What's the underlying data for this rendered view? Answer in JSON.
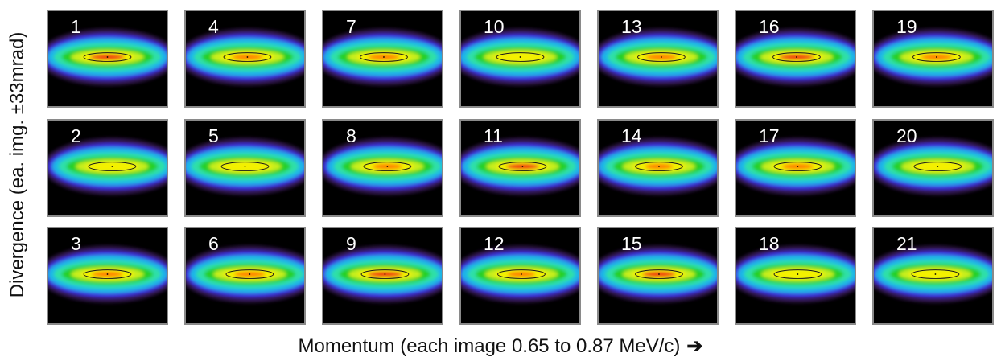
{
  "y_axis_label": "Divergence (ea. img. ±33mrad)",
  "x_axis_label": "Momentum (each image 0.65 to 0.87 MeV/c)",
  "x_axis_arrow": "➔",
  "panels": [
    {
      "label": "1"
    },
    {
      "label": "4"
    },
    {
      "label": "7"
    },
    {
      "label": "10"
    },
    {
      "label": "13"
    },
    {
      "label": "16"
    },
    {
      "label": "19"
    },
    {
      "label": "2"
    },
    {
      "label": "5"
    },
    {
      "label": "8"
    },
    {
      "label": "11"
    },
    {
      "label": "14"
    },
    {
      "label": "17"
    },
    {
      "label": "20"
    },
    {
      "label": "3"
    },
    {
      "label": "6"
    },
    {
      "label": "9"
    },
    {
      "label": "12"
    },
    {
      "label": "15"
    },
    {
      "label": "18"
    },
    {
      "label": "21"
    }
  ],
  "colormap": {
    "halo": "#5a2a8c",
    "outer": "#3a32e0",
    "mid1": "#1fb6e8",
    "mid2": "#2fe0a8",
    "mid3": "#27d027",
    "mid4": "#c8ef1c",
    "core": "#f4f000",
    "peak": "#ff7a00",
    "hot": "#f01010",
    "contour": "#1a1a1a"
  }
}
